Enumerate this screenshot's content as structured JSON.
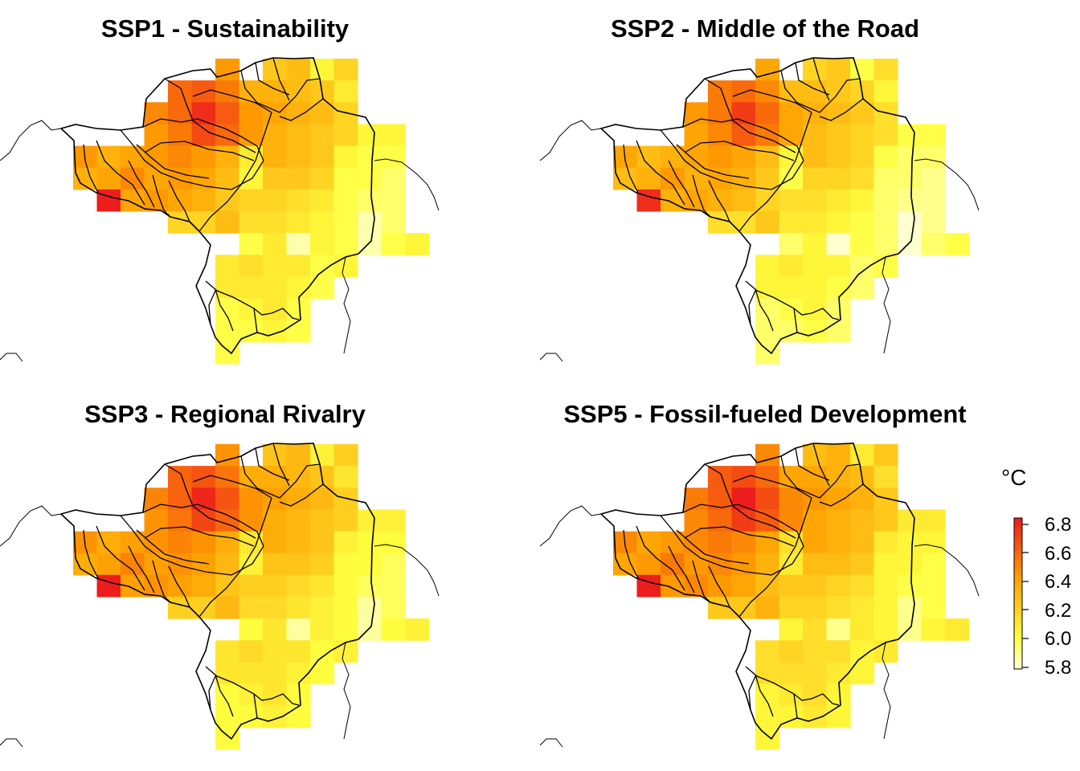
{
  "panels": [
    {
      "title": "SSP1 - Sustainability",
      "offset": 0.0
    },
    {
      "title": "SSP2 - Middle of the Road",
      "offset": -0.05
    },
    {
      "title": "SSP3 - Regional Rivalry",
      "offset": 0.02
    },
    {
      "title": "SSP5 - Fossil-fueled Development",
      "offset": 0.05
    }
  ],
  "legend": {
    "title": "°C",
    "ticks": [
      "6.8",
      "6.6",
      "6.4",
      "6.2",
      "6.0",
      "5.8"
    ],
    "min": 5.8,
    "max": 6.85
  },
  "colors": {
    "high": "#ee1d1d",
    "mid": "#ff9f00",
    "low": "#ffff40",
    "lowest": "#ffffd0"
  },
  "grid_values": [
    [
      null,
      null,
      null,
      null,
      null,
      null,
      6.45,
      null,
      6.25,
      6.3,
      6.05,
      6.2,
      null,
      null,
      null
    ],
    [
      null,
      null,
      null,
      null,
      6.6,
      6.65,
      6.55,
      6.35,
      6.35,
      6.3,
      6.25,
      6.1,
      null,
      null,
      null
    ],
    [
      null,
      null,
      null,
      6.5,
      6.6,
      6.8,
      6.65,
      6.45,
      6.4,
      6.35,
      6.3,
      6.2,
      null,
      null,
      null
    ],
    [
      null,
      null,
      null,
      6.45,
      6.55,
      6.7,
      6.6,
      6.45,
      6.35,
      6.3,
      6.25,
      6.2,
      6.05,
      6.05,
      null
    ],
    [
      6.45,
      6.35,
      6.4,
      6.45,
      6.5,
      6.45,
      6.35,
      6.1,
      6.35,
      6.3,
      6.25,
      6.05,
      6.0,
      6.0,
      null
    ],
    [
      6.35,
      6.4,
      6.5,
      6.4,
      6.45,
      6.4,
      6.3,
      6.05,
      6.25,
      6.25,
      6.2,
      6.0,
      6.0,
      5.95,
      null
    ],
    [
      null,
      6.85,
      6.4,
      6.45,
      6.4,
      6.35,
      6.25,
      6.2,
      6.2,
      6.15,
      6.1,
      6.0,
      5.95,
      5.95,
      null
    ],
    [
      null,
      null,
      null,
      null,
      6.2,
      6.2,
      6.3,
      6.15,
      6.15,
      6.1,
      6.05,
      6.0,
      5.85,
      5.95,
      null
    ],
    [
      null,
      null,
      null,
      null,
      null,
      null,
      null,
      6.0,
      6.1,
      5.85,
      6.05,
      6.0,
      5.85,
      6.0,
      6.05
    ],
    [
      null,
      null,
      null,
      null,
      null,
      null,
      6.1,
      6.15,
      6.1,
      6.1,
      6.0,
      6.05,
      null,
      null,
      null
    ],
    [
      null,
      null,
      null,
      null,
      null,
      null,
      6.1,
      6.1,
      6.1,
      6.05,
      6.0,
      null,
      null,
      null,
      null
    ],
    [
      null,
      null,
      null,
      null,
      null,
      null,
      6.0,
      6.05,
      6.1,
      6.0,
      null,
      null,
      null,
      null,
      null
    ],
    [
      null,
      null,
      null,
      null,
      null,
      null,
      6.0,
      6.0,
      6.05,
      6.0,
      null,
      null,
      null,
      null,
      null
    ],
    [
      null,
      null,
      null,
      null,
      null,
      null,
      6.0,
      null,
      null,
      null,
      null,
      null,
      null,
      null,
      null
    ]
  ]
}
